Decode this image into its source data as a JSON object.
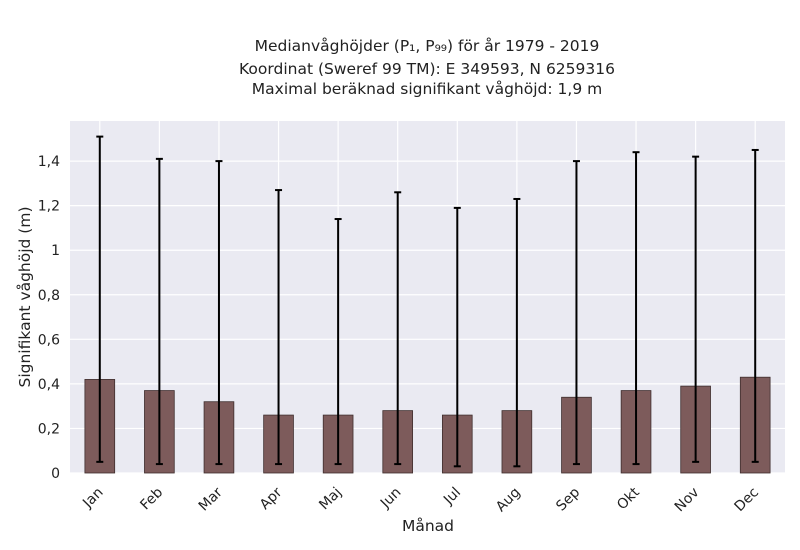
{
  "chart_data": {
    "type": "bar",
    "title_lines": [
      "Medianvåghöjder (P₁, P₉₉) för år 1979 - 2019",
      "Koordinat (Sweref 99 TM): E 349593, N 6259316",
      "Maximal beräknad signifikant våghöjd: 1,9 m"
    ],
    "xlabel": "Månad",
    "ylabel": "Signifikant våghöjd (m)",
    "categories": [
      "Jan",
      "Feb",
      "Mar",
      "Apr",
      "Maj",
      "Jun",
      "Jul",
      "Aug",
      "Sep",
      "Okt",
      "Nov",
      "Dec"
    ],
    "values": [
      0.42,
      0.37,
      0.32,
      0.26,
      0.26,
      0.28,
      0.26,
      0.28,
      0.34,
      0.37,
      0.39,
      0.43
    ],
    "p1": [
      0.05,
      0.04,
      0.04,
      0.04,
      0.04,
      0.04,
      0.03,
      0.03,
      0.04,
      0.04,
      0.05,
      0.05
    ],
    "p99": [
      1.51,
      1.41,
      1.4,
      1.27,
      1.14,
      1.26,
      1.19,
      1.23,
      1.4,
      1.44,
      1.42,
      1.45
    ],
    "ylim": [
      0,
      1.58
    ],
    "yticks": [
      0,
      0.2,
      0.4,
      0.6,
      0.8,
      1.0,
      1.2,
      1.4
    ],
    "ytick_labels": [
      "0",
      "0,2",
      "0,4",
      "0,6",
      "0,8",
      "1",
      "1,2",
      "1,4"
    ],
    "grid": true,
    "colors": {
      "bar_fill": "#7d5b5b",
      "bar_edge": "#3f2e2e",
      "error_bar": "#000000",
      "plot_background": "#eaeaf2",
      "grid": "#ffffff"
    }
  }
}
